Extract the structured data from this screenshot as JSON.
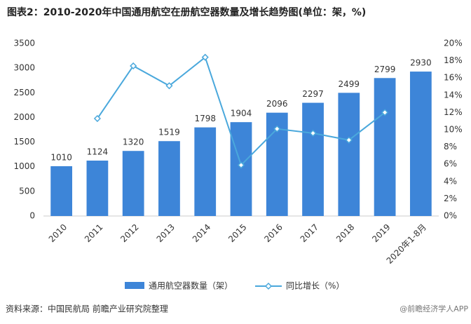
{
  "chart_data": {
    "type": "bar-line",
    "title": "图表2：2010-2020年中国通用航空在册航空器数量及增长趋势图(单位：架，%)",
    "categories": [
      "2010",
      "2011",
      "2012",
      "2013",
      "2014",
      "2015",
      "2016",
      "2017",
      "2018",
      "2019",
      "2020年1-8月"
    ],
    "series": [
      {
        "name": "通用航空器数量（架）",
        "color": "#3d85d8",
        "values": [
          1010,
          1124,
          1320,
          1519,
          1798,
          1904,
          2096,
          2297,
          2499,
          2799,
          2930
        ]
      },
      {
        "name": "同比增长（%）",
        "color": "#4aa8dc",
        "axis": "y2",
        "values": [
          null,
          11.3,
          17.4,
          15.1,
          18.4,
          5.9,
          10.1,
          9.6,
          8.8,
          12.0,
          null
        ]
      }
    ],
    "ylim": [
      0,
      3500
    ],
    "yticks": [
      0,
      500,
      1000,
      1500,
      2000,
      2500,
      3000,
      3500
    ],
    "y2lim": [
      0,
      20
    ],
    "y2ticks": [
      {
        "value": 0,
        "label": "0%"
      },
      {
        "value": 2,
        "label": "2%"
      },
      {
        "value": 4,
        "label": "4%"
      },
      {
        "value": 6,
        "label": "6%"
      },
      {
        "value": 8,
        "label": "8%"
      },
      {
        "value": 10,
        "label": "10%"
      },
      {
        "value": 12,
        "label": "12%"
      },
      {
        "value": 14,
        "label": "14%"
      },
      {
        "value": 16,
        "label": "16%"
      },
      {
        "value": 18,
        "label": "18%"
      },
      {
        "value": 20,
        "label": "20%"
      }
    ],
    "legend": "bottom",
    "source": "资料来源：中国民航局 前瞻产业研究院整理",
    "watermark": "@前瞻经济学人APP"
  }
}
